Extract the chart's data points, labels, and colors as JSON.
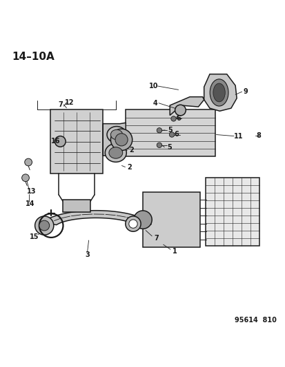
{
  "title": "14–10A",
  "footer": "95614  810",
  "background_color": "#ffffff",
  "line_color": "#1a1a1a",
  "figsize": [
    4.14,
    5.33
  ],
  "dpi": 100
}
